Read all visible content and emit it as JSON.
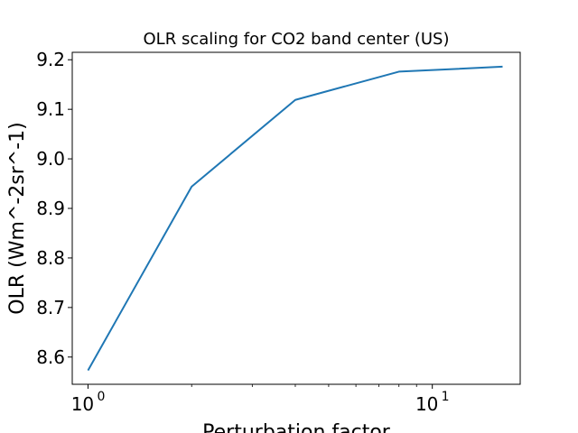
{
  "chart_data": {
    "type": "line",
    "title": "OLR scaling for CO2 band center (US)",
    "xlabel": "Perturbation factor",
    "ylabel": "OLR (Wm^-2sr^-1)",
    "xscale": "log",
    "xlim": [
      0.9,
      18
    ],
    "ylim": [
      8.545,
      9.215
    ],
    "x_ticks": [
      {
        "value": 1,
        "base": "10",
        "exp": "0"
      },
      {
        "value": 10,
        "base": "10",
        "exp": "1"
      }
    ],
    "y_ticks": [
      {
        "value": 8.6,
        "label": "8.6"
      },
      {
        "value": 8.7,
        "label": "8.7"
      },
      {
        "value": 8.8,
        "label": "8.8"
      },
      {
        "value": 8.9,
        "label": "8.9"
      },
      {
        "value": 9.0,
        "label": "9.0"
      },
      {
        "value": 9.1,
        "label": "9.1"
      },
      {
        "value": 9.2,
        "label": "9.2"
      }
    ],
    "grid": false,
    "legend": "none",
    "series": [
      {
        "color": "#1f77b4",
        "x": [
          1,
          2,
          4,
          8,
          16
        ],
        "y": [
          8.573,
          8.944,
          9.119,
          9.176,
          9.186
        ]
      }
    ]
  }
}
